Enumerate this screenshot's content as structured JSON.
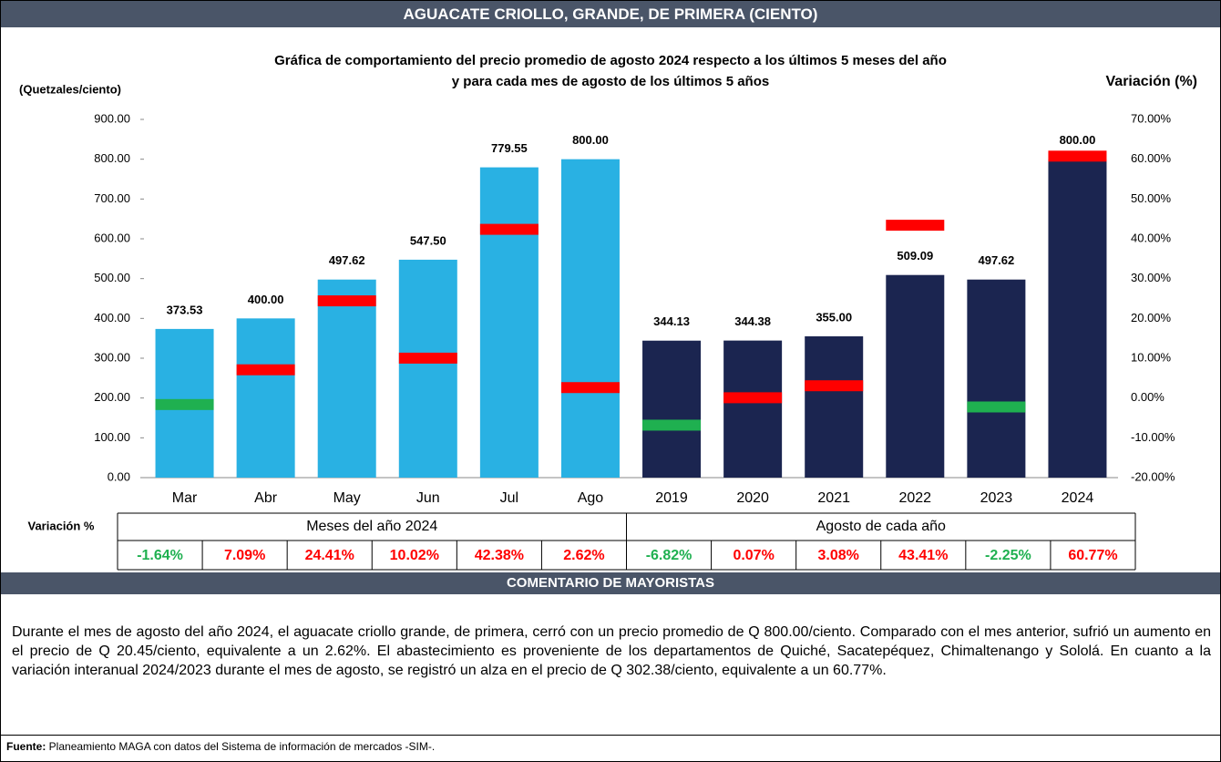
{
  "header": {
    "title": "AGUACATE CRIOLLO, GRANDE, DE PRIMERA (CIENTO)"
  },
  "chart_data": {
    "type": "bar",
    "title": [
      "Gráfica de comportamiento del precio promedio de agosto 2024 respecto a los últimos 5 meses del año",
      "y para cada mes de agosto de los últimos 5 años"
    ],
    "y_label": "(Quetzales/ciento)",
    "y2_label": "Variación (%)",
    "ylim": [
      0,
      900
    ],
    "yticks": [
      {
        "value": 0,
        "label": "0.00"
      },
      {
        "value": 100,
        "label": "100.00"
      },
      {
        "value": 200,
        "label": "200.00"
      },
      {
        "value": 300,
        "label": "300.00"
      },
      {
        "value": 400,
        "label": "400.00"
      },
      {
        "value": 500,
        "label": "500.00"
      },
      {
        "value": 600,
        "label": "600.00"
      },
      {
        "value": 700,
        "label": "700.00"
      },
      {
        "value": 800,
        "label": "800.00"
      },
      {
        "value": 900,
        "label": "900.00"
      }
    ],
    "y2lim": [
      -20,
      70
    ],
    "y2ticks": [
      {
        "value": -20,
        "label": "-20.00%"
      },
      {
        "value": -10,
        "label": "-10.00%"
      },
      {
        "value": 0,
        "label": "0.00%"
      },
      {
        "value": 10,
        "label": "10.00%"
      },
      {
        "value": 20,
        "label": "20.00%"
      },
      {
        "value": 30,
        "label": "30.00%"
      },
      {
        "value": 40,
        "label": "40.00%"
      },
      {
        "value": 50,
        "label": "50.00%"
      },
      {
        "value": 60,
        "label": "60.00%"
      },
      {
        "value": 70,
        "label": "70.00%"
      }
    ],
    "table_label": "Variación %",
    "positive_color": "#ff0000",
    "negative_color": "#1fb050",
    "groups": [
      {
        "label": "Meses del año  2024",
        "color": "#29b1e3",
        "categories": [
          "Mar",
          "Abr",
          "May",
          "Jun",
          "Jul",
          "Ago"
        ],
        "values": [
          373.53,
          400,
          497.62,
          547.5,
          779.55,
          800
        ],
        "value_labels": [
          "373.53",
          "400.00",
          "497.62",
          "547.50",
          "779.55",
          "800.00"
        ],
        "variation": {
          "axis": "y2",
          "values": [
            -1.64,
            7.09,
            24.41,
            10.02,
            42.38,
            2.62
          ],
          "value_labels": [
            "-1.64%",
            "7.09%",
            "24.41%",
            "10.02%",
            "42.38%",
            "2.62%"
          ]
        }
      },
      {
        "label": "Agosto de cada año",
        "color": "#1b2550",
        "categories": [
          "2019",
          "2020",
          "2021",
          "2022",
          "2023",
          "2024"
        ],
        "values": [
          344.13,
          344.38,
          355,
          509.09,
          497.62,
          800
        ],
        "value_labels": [
          "344.13",
          "344.38",
          "355.00",
          "509.09",
          "497.62",
          "800.00"
        ],
        "variation": {
          "axis": "y2",
          "values": [
            -6.82,
            0.07,
            3.08,
            43.41,
            -2.25,
            60.77
          ],
          "value_labels": [
            "-6.82%",
            "0.07%",
            "3.08%",
            "43.41%",
            "-2.25%",
            "60.77%"
          ]
        }
      }
    ]
  },
  "comment": {
    "title": "COMENTARIO DE MAYORISTAS",
    "text": "Durante el mes de agosto  del año 2024, el aguacate criollo grande, de primera, cerró con un precio promedio de Q 800.00/ciento. Comparado con el mes anterior, sufrió un aumento en el precio de Q 20.45/ciento, equivalente a un 2.62%. El abastecimiento es proveniente de los departamentos de Quiché, Sacatepéquez, Chimaltenango y Sololá.  En cuanto a la variación interanual 2024/2023 durante el mes de agosto, se registró un alza en el precio de Q 302.38/ciento, equivalente a un 60.77%."
  },
  "source": {
    "label": "Fuente:",
    "text": " Planeamiento MAGA con datos del Sistema de información de mercados -SIM-."
  }
}
